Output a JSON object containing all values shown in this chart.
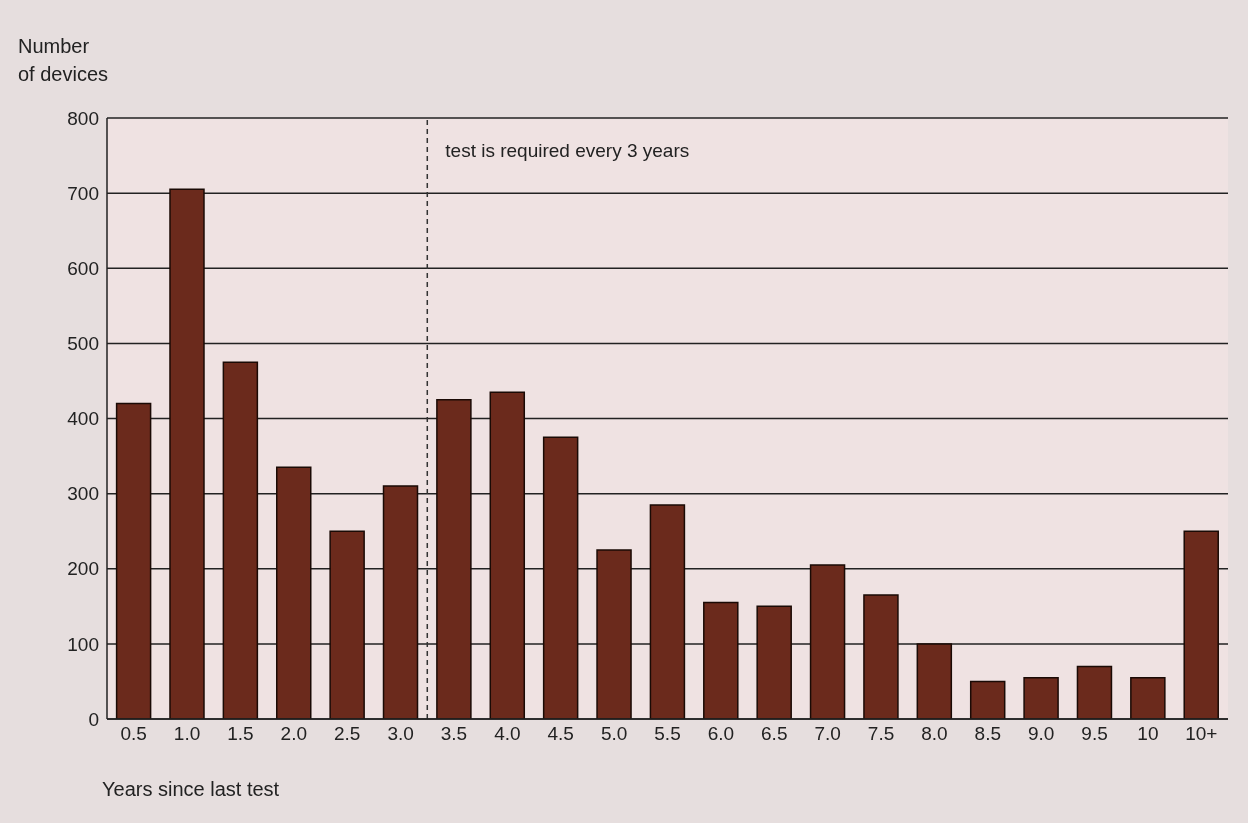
{
  "chart_data": {
    "type": "bar",
    "xlabel": "Years since last test",
    "ylabel": "Number\nof devices",
    "categories": [
      "0.5",
      "1.0",
      "1.5",
      "2.0",
      "2.5",
      "3.0",
      "3.5",
      "4.0",
      "4.5",
      "5.0",
      "5.5",
      "6.0",
      "6.5",
      "7.0",
      "7.5",
      "8.0",
      "8.5",
      "9.0",
      "9.5",
      "10",
      "10+"
    ],
    "values": [
      420,
      705,
      475,
      335,
      250,
      310,
      425,
      435,
      375,
      225,
      285,
      155,
      150,
      205,
      165,
      100,
      50,
      55,
      70,
      55,
      250
    ],
    "color": "#6b2a1c",
    "ylim": [
      0,
      800
    ],
    "yticks": [
      0,
      100,
      200,
      300,
      400,
      500,
      600,
      700,
      800
    ],
    "grid": "y",
    "ref_lines": [
      {
        "axis": "x",
        "value": "3.0",
        "label": "test is required every 3 years",
        "line_style": "dashed",
        "color": "#333333"
      }
    ]
  }
}
